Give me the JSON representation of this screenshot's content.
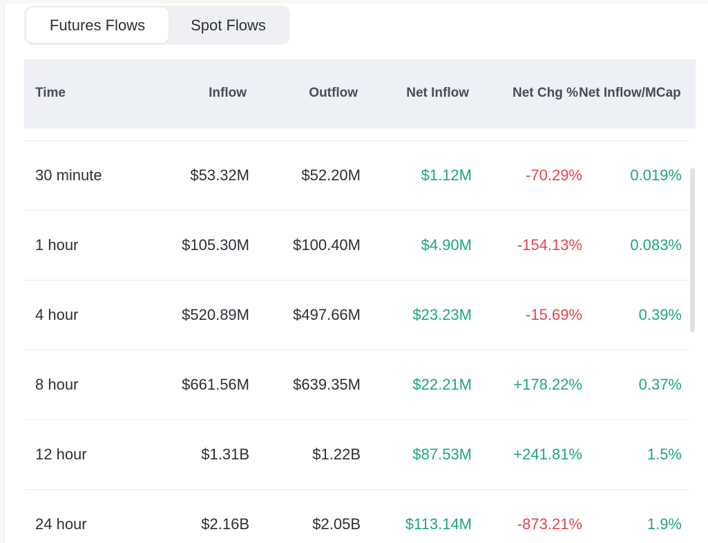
{
  "tabs": [
    {
      "label": "Futures Flows",
      "active": true
    },
    {
      "label": "Spot Flows",
      "active": false
    }
  ],
  "columns": {
    "time": "Time",
    "inflow": "Inflow",
    "outflow": "Outflow",
    "net_inflow": "Net Inflow",
    "net_chg": "Net Chg %",
    "net_inflow_mcap": "Net Inflow/MCap"
  },
  "rows": [
    {
      "time": "30 minute",
      "inflow": "$53.32M",
      "outflow": "$52.20M",
      "net_inflow": "$1.12M",
      "net_chg": "-70.29%",
      "mcap": "0.019%"
    },
    {
      "time": "1 hour",
      "inflow": "$105.30M",
      "outflow": "$100.40M",
      "net_inflow": "$4.90M",
      "net_chg": "-154.13%",
      "mcap": "0.083%"
    },
    {
      "time": "4 hour",
      "inflow": "$520.89M",
      "outflow": "$497.66M",
      "net_inflow": "$23.23M",
      "net_chg": "-15.69%",
      "mcap": "0.39%"
    },
    {
      "time": "8 hour",
      "inflow": "$661.56M",
      "outflow": "$639.35M",
      "net_inflow": "$22.21M",
      "net_chg": "+178.22%",
      "mcap": "0.37%"
    },
    {
      "time": "12 hour",
      "inflow": "$1.31B",
      "outflow": "$1.22B",
      "net_inflow": "$87.53M",
      "net_chg": "+241.81%",
      "mcap": "1.5%"
    },
    {
      "time": "24 hour",
      "inflow": "$2.16B",
      "outflow": "$2.05B",
      "net_inflow": "$113.14M",
      "net_chg": "-873.21%",
      "mcap": "1.9%"
    }
  ],
  "colors": {
    "positive": "#1ea67a",
    "negative": "#e2444f",
    "header_bg": "#edf0f5",
    "tab_bg": "#eef0f4"
  }
}
